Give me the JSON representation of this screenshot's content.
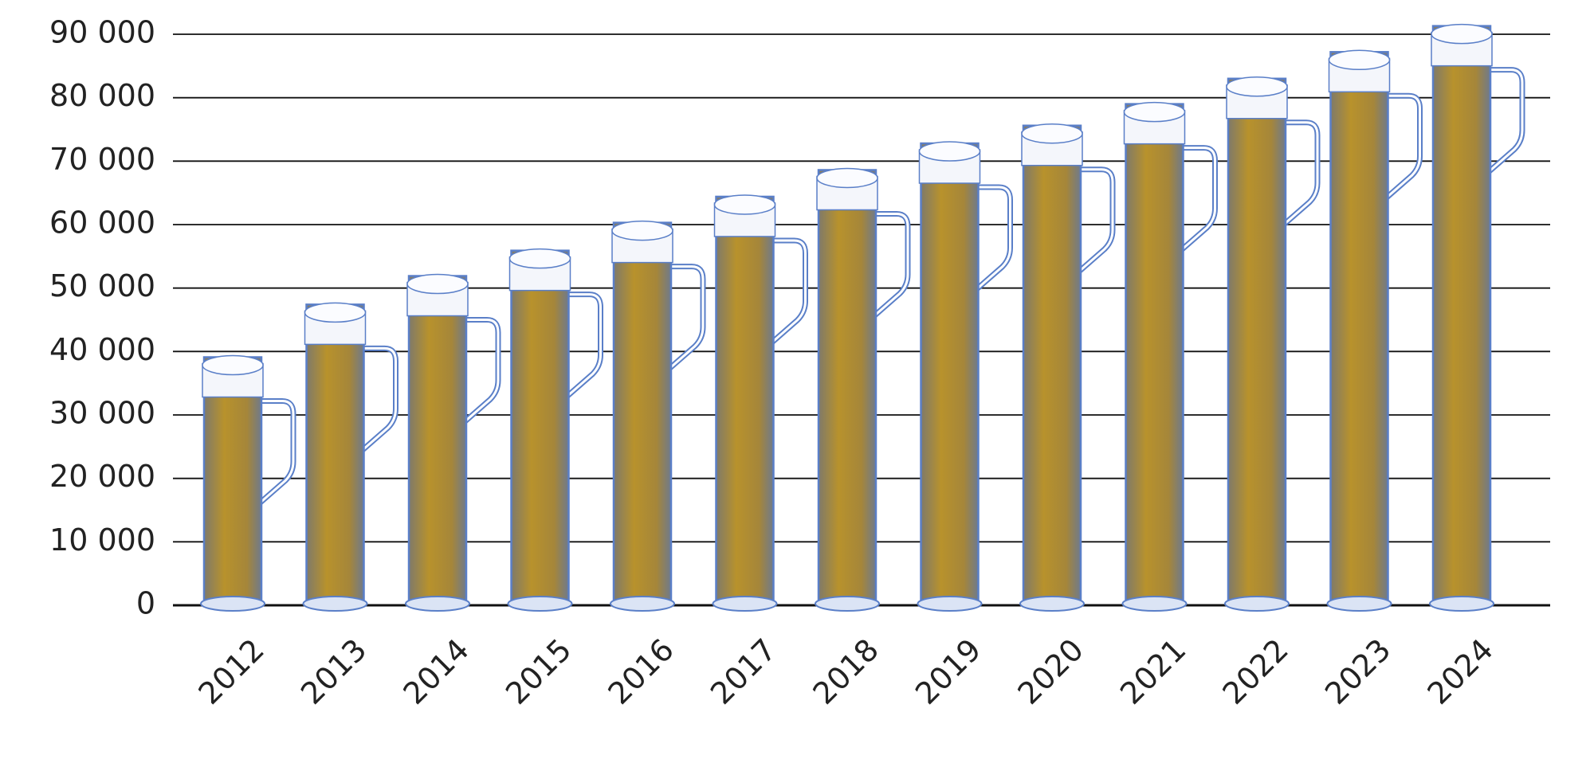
{
  "chart_data": {
    "type": "bar",
    "categories": [
      "2012",
      "2013",
      "2014",
      "2015",
      "2016",
      "2017",
      "2018",
      "2019",
      "2020",
      "2021",
      "2022",
      "2023",
      "2024"
    ],
    "values": [
      39100,
      47400,
      51900,
      55900,
      60300,
      64400,
      68600,
      72800,
      75600,
      79000,
      83000,
      87200,
      91300
    ],
    "color": "#b08a2a",
    "glass_color": "#5a7fc8",
    "ylim": [
      0,
      90000
    ],
    "yticks": [
      0,
      {
        "value": 10000,
        "label": "10 000"
      },
      {
        "value": 20000,
        "label": "20 000"
      },
      {
        "value": 30000,
        "label": "30 000"
      },
      {
        "value": 40000,
        "label": "40 000"
      },
      {
        "value": 50000,
        "label": "50 000"
      },
      {
        "value": 60000,
        "label": "60 000"
      },
      {
        "value": 70000,
        "label": "70 000"
      },
      {
        "value": 80000,
        "label": "80 000"
      },
      {
        "value": 90000,
        "label": "90 000"
      }
    ],
    "grid": true
  }
}
